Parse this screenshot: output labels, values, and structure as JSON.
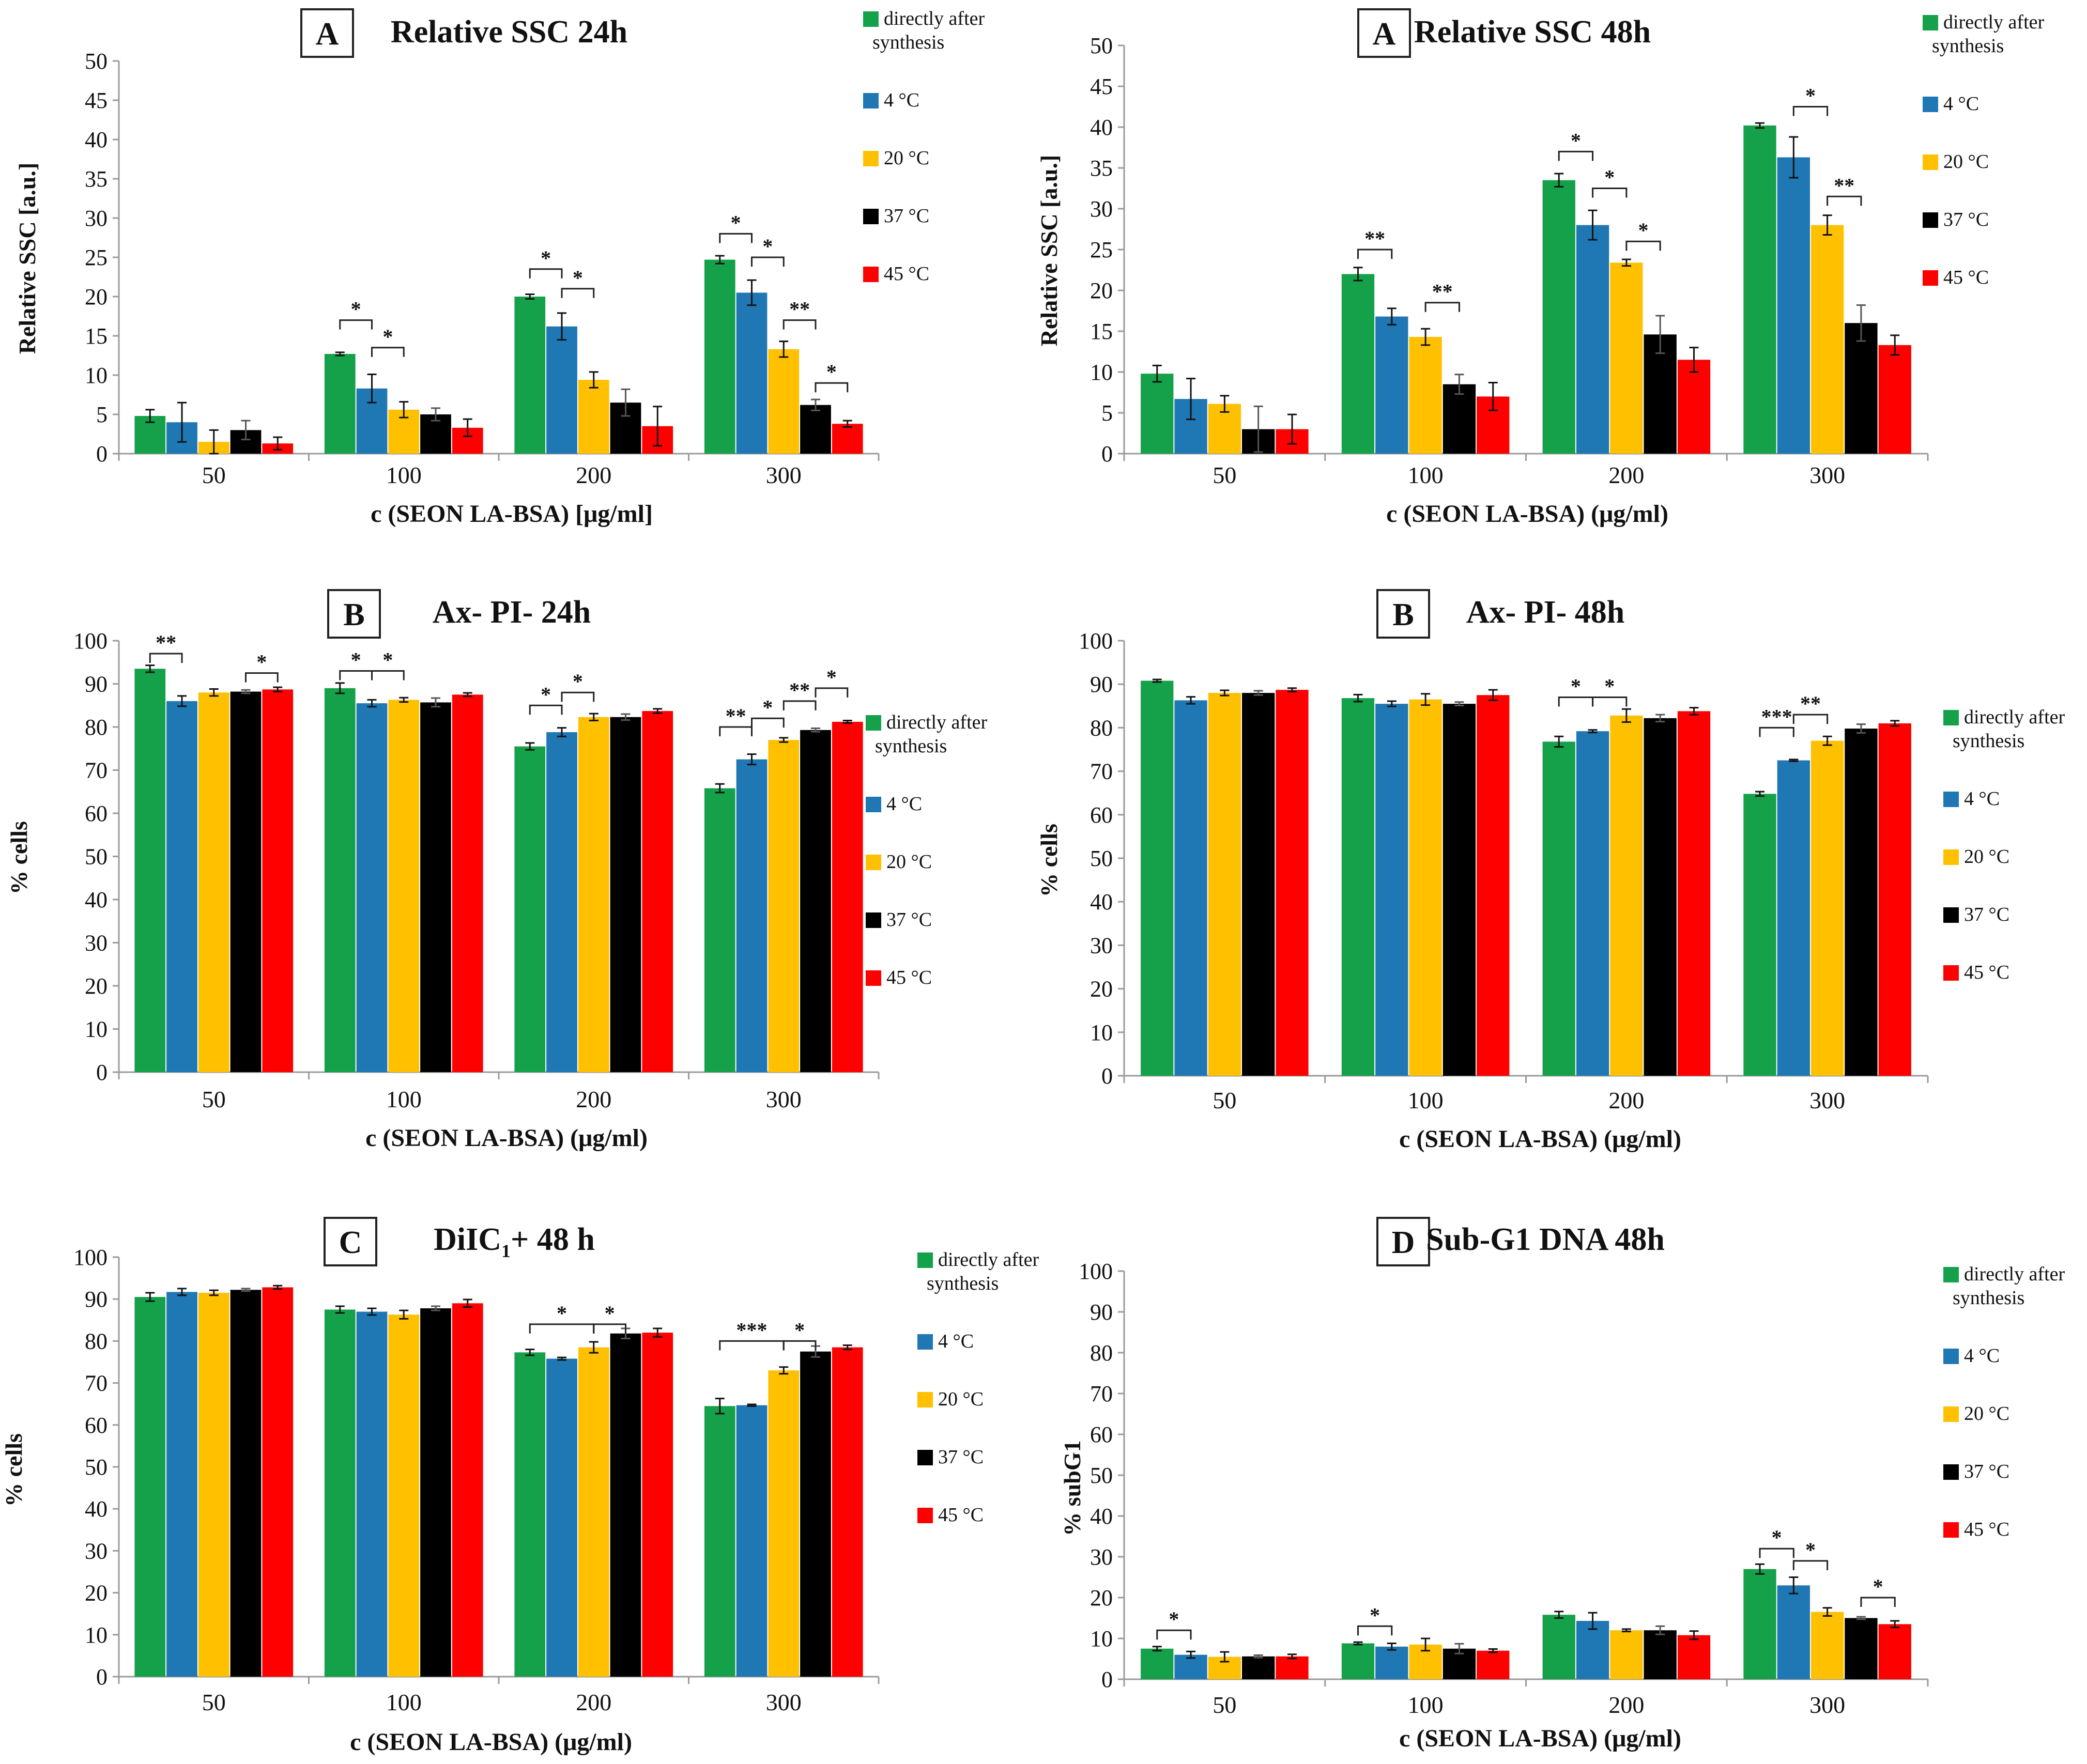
{
  "colors": {
    "directly_after_synthesis": "#14A14A",
    "c4": "#1F77B4",
    "c20": "#FFC000",
    "c37": "#000000",
    "c45": "#FF0000"
  },
  "chart_data": [
    {
      "type": "bar",
      "panel": "A",
      "title": "Relative SSC 24h",
      "xlabel": "c (SEON  LA-BSA)  [μg/ml]",
      "ylabel": "Relative   SSC [a.u.]",
      "ylim": [
        0,
        50
      ],
      "yticks": [
        0,
        5,
        10,
        15,
        20,
        25,
        30,
        35,
        40,
        45,
        50
      ],
      "categories": [
        "50",
        "100",
        "200",
        "300"
      ],
      "legend": [
        "directly after synthesis",
        "4 °C",
        "20 °C",
        "37 °C",
        "45 °C"
      ],
      "series": [
        {
          "name": "directly after synthesis",
          "values": [
            4.8,
            12.7,
            20.0,
            24.7
          ],
          "errors": [
            0.8,
            0.2,
            0.3,
            0.5
          ]
        },
        {
          "name": "4 °C",
          "values": [
            4.0,
            8.3,
            16.2,
            20.5
          ],
          "errors": [
            2.5,
            1.8,
            1.7,
            1.6
          ]
        },
        {
          "name": "20 °C",
          "values": [
            1.5,
            5.6,
            9.4,
            13.3
          ],
          "errors": [
            1.5,
            1.0,
            1.0,
            1.0
          ]
        },
        {
          "name": "37 °C",
          "values": [
            3.0,
            5.0,
            6.5,
            6.2
          ],
          "errors": [
            1.2,
            0.8,
            1.7,
            0.7
          ]
        },
        {
          "name": "45 °C",
          "values": [
            1.3,
            3.3,
            3.5,
            3.8
          ],
          "errors": [
            0.8,
            1.1,
            2.5,
            0.4
          ]
        }
      ],
      "significance": [
        {
          "category": 1,
          "from": 0,
          "to": 1,
          "label": "*",
          "level": 17
        },
        {
          "category": 1,
          "from": 1,
          "to": 2,
          "label": "*",
          "level": 13.5
        },
        {
          "category": 2,
          "from": 0,
          "to": 1,
          "label": "*",
          "level": 23.5
        },
        {
          "category": 2,
          "from": 1,
          "to": 2,
          "label": "*",
          "level": 21
        },
        {
          "category": 3,
          "from": 0,
          "to": 1,
          "label": "*",
          "level": 28
        },
        {
          "category": 3,
          "from": 1,
          "to": 2,
          "label": "*",
          "level": 25
        },
        {
          "category": 3,
          "from": 2,
          "to": 3,
          "label": "**",
          "level": 17
        },
        {
          "category": 3,
          "from": 3,
          "to": 4,
          "label": "*",
          "level": 9
        }
      ]
    },
    {
      "type": "bar",
      "panel": "A",
      "title": "Relative SSC 48h",
      "xlabel": "c (SEON  LA-BSA)  (μg/ml)",
      "ylabel": "Relative   SSC [a.u.]",
      "ylim": [
        0,
        50
      ],
      "yticks": [
        0,
        5,
        10,
        15,
        20,
        25,
        30,
        35,
        40,
        45,
        50
      ],
      "categories": [
        "50",
        "100",
        "200",
        "300"
      ],
      "legend": [
        "directly after synthesis",
        "4 °C",
        "20 °C",
        "37 °C",
        "45 °C"
      ],
      "series": [
        {
          "name": "directly after synthesis",
          "values": [
            9.8,
            22.0,
            33.5,
            40.2
          ],
          "errors": [
            1.0,
            0.8,
            0.8,
            0.3
          ]
        },
        {
          "name": "4 °C",
          "values": [
            6.7,
            16.8,
            28.0,
            36.3
          ],
          "errors": [
            2.5,
            1.0,
            1.8,
            2.5
          ]
        },
        {
          "name": "20 °C",
          "values": [
            6.1,
            14.3,
            23.4,
            28.0
          ],
          "errors": [
            1.0,
            1.0,
            0.4,
            1.2
          ]
        },
        {
          "name": "37 °C",
          "values": [
            3.0,
            8.5,
            14.6,
            16.0
          ],
          "errors": [
            2.8,
            1.2,
            2.3,
            2.2
          ]
        },
        {
          "name": "45 °C",
          "values": [
            3.0,
            7.0,
            11.5,
            13.3
          ],
          "errors": [
            1.8,
            1.7,
            1.5,
            1.2
          ]
        }
      ],
      "significance": [
        {
          "category": 1,
          "from": 0,
          "to": 1,
          "label": "**",
          "level": 25
        },
        {
          "category": 1,
          "from": 2,
          "to": 3,
          "label": "**",
          "level": 18.5
        },
        {
          "category": 2,
          "from": 0,
          "to": 1,
          "label": "*",
          "level": 37
        },
        {
          "category": 2,
          "from": 1,
          "to": 2,
          "label": "*",
          "level": 32.5
        },
        {
          "category": 2,
          "from": 2,
          "to": 3,
          "label": "*",
          "level": 26
        },
        {
          "category": 3,
          "from": 1,
          "to": 2,
          "label": "*",
          "level": 42.5
        },
        {
          "category": 3,
          "from": 2,
          "to": 3,
          "label": "**",
          "level": 31.5
        }
      ]
    },
    {
      "type": "bar",
      "panel": "B",
      "title": "Ax- PI- 24h",
      "xlabel": "c (SEON  LA-BSA)  (μg/ml)",
      "ylabel": "% cells",
      "ylim": [
        0,
        100
      ],
      "yticks": [
        0,
        10,
        20,
        30,
        40,
        50,
        60,
        70,
        80,
        90,
        100
      ],
      "categories": [
        "50",
        "100",
        "200",
        "300"
      ],
      "legend": [
        "directly after synthesis",
        "4 °C",
        "20 °C",
        "37 °C",
        "45 °C"
      ],
      "series": [
        {
          "name": "directly after synthesis",
          "values": [
            93.5,
            89.0,
            75.5,
            65.8
          ],
          "errors": [
            0.8,
            1.2,
            0.8,
            1.0
          ]
        },
        {
          "name": "4 °C",
          "values": [
            86.0,
            85.5,
            78.8,
            72.5
          ],
          "errors": [
            1.2,
            0.8,
            1.0,
            1.2
          ]
        },
        {
          "name": "20 °C",
          "values": [
            88.0,
            86.3,
            82.3,
            77.0
          ],
          "errors": [
            0.8,
            0.5,
            0.8,
            0.5
          ]
        },
        {
          "name": "37 °C",
          "values": [
            88.2,
            85.7,
            82.3,
            79.3
          ],
          "errors": [
            0.4,
            1.0,
            0.7,
            0.4
          ]
        },
        {
          "name": "45 °C",
          "values": [
            88.7,
            87.5,
            83.7,
            81.2
          ],
          "errors": [
            0.5,
            0.4,
            0.5,
            0.3
          ]
        }
      ],
      "significance": [
        {
          "category": 0,
          "from": 0,
          "to": 1,
          "label": "**",
          "level": 97
        },
        {
          "category": 0,
          "from": 3,
          "to": 4,
          "label": "*",
          "level": 92.5
        },
        {
          "category": 1,
          "from": 0,
          "to": 1,
          "label": "*",
          "level": 93
        },
        {
          "category": 1,
          "from": 1,
          "to": 2,
          "label": "*",
          "level": 93
        },
        {
          "category": 2,
          "from": 0,
          "to": 1,
          "label": "*",
          "level": 85
        },
        {
          "category": 2,
          "from": 1,
          "to": 2,
          "label": "*",
          "level": 88
        },
        {
          "category": 3,
          "from": 0,
          "to": 1,
          "label": "**",
          "level": 80
        },
        {
          "category": 3,
          "from": 1,
          "to": 2,
          "label": "*",
          "level": 82
        },
        {
          "category": 3,
          "from": 2,
          "to": 3,
          "label": "**",
          "level": 86
        },
        {
          "category": 3,
          "from": 3,
          "to": 4,
          "label": "*",
          "level": 89
        }
      ]
    },
    {
      "type": "bar",
      "panel": "B",
      "title": "Ax- PI- 48h",
      "xlabel": "c (SEON  LA-BSA)  (μg/ml)",
      "ylabel": "% cells",
      "ylim": [
        0,
        100
      ],
      "yticks": [
        0,
        10,
        20,
        30,
        40,
        50,
        60,
        70,
        80,
        90,
        100
      ],
      "categories": [
        "50",
        "100",
        "200",
        "300"
      ],
      "legend": [
        "directly after synthesis",
        "4 °C",
        "20 °C",
        "37 °C",
        "45 °C"
      ],
      "series": [
        {
          "name": "directly after synthesis",
          "values": [
            90.8,
            86.8,
            76.8,
            64.8
          ],
          "errors": [
            0.3,
            0.8,
            1.2,
            0.5
          ]
        },
        {
          "name": "4 °C",
          "values": [
            86.3,
            85.5,
            79.2,
            72.5
          ],
          "errors": [
            0.8,
            0.6,
            0.3,
            0.2
          ]
        },
        {
          "name": "20 °C",
          "values": [
            88.0,
            86.5,
            82.8,
            77.0
          ],
          "errors": [
            0.6,
            1.3,
            1.5,
            1.0
          ]
        },
        {
          "name": "37 °C",
          "values": [
            88.0,
            85.5,
            82.2,
            79.8
          ],
          "errors": [
            0.5,
            0.4,
            0.8,
            1.0
          ]
        },
        {
          "name": "45 °C",
          "values": [
            88.7,
            87.5,
            83.8,
            81.0
          ],
          "errors": [
            0.4,
            1.2,
            0.8,
            0.6
          ]
        }
      ],
      "significance": [
        {
          "category": 2,
          "from": 0,
          "to": 1,
          "label": "*",
          "level": 87
        },
        {
          "category": 2,
          "from": 1,
          "to": 2,
          "label": "*",
          "level": 87
        },
        {
          "category": 3,
          "from": 0,
          "to": 1,
          "label": "***",
          "level": 80
        },
        {
          "category": 3,
          "from": 1,
          "to": 2,
          "label": "**",
          "level": 83
        }
      ]
    },
    {
      "type": "bar",
      "panel": "C",
      "title": "DiIC1+ 48 h",
      "xlabel": "c (SEON  LA-BSA)  (μg/ml)",
      "ylabel": "% cells",
      "ylim": [
        0,
        100
      ],
      "yticks": [
        0,
        10,
        20,
        30,
        40,
        50,
        60,
        70,
        80,
        90,
        100
      ],
      "categories": [
        "50",
        "100",
        "200",
        "300"
      ],
      "legend": [
        "directly after synthesis",
        "4 °C",
        "20 °C",
        "37 °C",
        "45 °C"
      ],
      "series": [
        {
          "name": "directly after synthesis",
          "values": [
            90.5,
            87.5,
            77.3,
            64.5
          ],
          "errors": [
            1.0,
            0.8,
            0.7,
            1.8
          ]
        },
        {
          "name": "4 °C",
          "values": [
            91.7,
            87.0,
            75.8,
            64.7
          ],
          "errors": [
            0.8,
            0.8,
            0.3,
            0.2
          ]
        },
        {
          "name": "20 °C",
          "values": [
            91.5,
            86.3,
            78.5,
            73.0
          ],
          "errors": [
            0.6,
            1.0,
            1.3,
            0.8
          ]
        },
        {
          "name": "37 °C",
          "values": [
            92.2,
            87.8,
            81.8,
            77.5
          ],
          "errors": [
            0.3,
            0.5,
            1.2,
            1.3
          ]
        },
        {
          "name": "45 °C",
          "values": [
            92.8,
            89.0,
            82.0,
            78.5
          ],
          "errors": [
            0.4,
            0.9,
            1.0,
            0.5
          ]
        }
      ],
      "significance": [
        {
          "category": 2,
          "from": 0,
          "to": 2,
          "label": "*",
          "level": 84
        },
        {
          "category": 2,
          "from": 2,
          "to": 3,
          "label": "*",
          "level": 84
        },
        {
          "category": 3,
          "from": 0,
          "to": 2,
          "label": "***",
          "level": 80
        },
        {
          "category": 3,
          "from": 2,
          "to": 3,
          "label": "*",
          "level": 80
        }
      ]
    },
    {
      "type": "bar",
      "panel": "D",
      "title": "Sub-G1 DNA 48h",
      "xlabel": "c (SEON  LA-BSA)  (μg/ml)",
      "ylabel": "% subG1",
      "ylim": [
        0,
        100
      ],
      "yticks": [
        0,
        10,
        20,
        30,
        40,
        50,
        60,
        70,
        80,
        90,
        100
      ],
      "categories": [
        "50",
        "100",
        "200",
        "300"
      ],
      "legend": [
        "directly after synthesis",
        "4 °C",
        "20 °C",
        "37 °C",
        "45 °C"
      ],
      "series": [
        {
          "name": "directly after synthesis",
          "values": [
            7.5,
            8.8,
            15.8,
            27.0
          ],
          "errors": [
            0.5,
            0.3,
            0.8,
            1.2
          ]
        },
        {
          "name": "4 °C",
          "values": [
            6.0,
            8.0,
            14.3,
            23.0
          ],
          "errors": [
            0.8,
            0.8,
            2.0,
            2.0
          ]
        },
        {
          "name": "20 °C",
          "values": [
            5.5,
            8.5,
            12.0,
            16.5
          ],
          "errors": [
            1.2,
            1.5,
            0.3,
            1.0
          ]
        },
        {
          "name": "37 °C",
          "values": [
            5.6,
            7.5,
            12.0,
            15.0
          ],
          "errors": [
            0.3,
            1.2,
            1.0,
            0.3
          ]
        },
        {
          "name": "45 °C",
          "values": [
            5.6,
            7.0,
            10.8,
            13.5
          ],
          "errors": [
            0.5,
            0.4,
            1.0,
            0.8
          ]
        }
      ],
      "significance": [
        {
          "category": 0,
          "from": 0,
          "to": 1,
          "label": "*",
          "level": 12
        },
        {
          "category": 1,
          "from": 0,
          "to": 1,
          "label": "*",
          "level": 13
        },
        {
          "category": 3,
          "from": 0,
          "to": 1,
          "label": "*",
          "level": 32
        },
        {
          "category": 3,
          "from": 1,
          "to": 2,
          "label": "*",
          "level": 29
        },
        {
          "category": 3,
          "from": 3,
          "to": 4,
          "label": "*",
          "level": 20
        }
      ]
    }
  ]
}
